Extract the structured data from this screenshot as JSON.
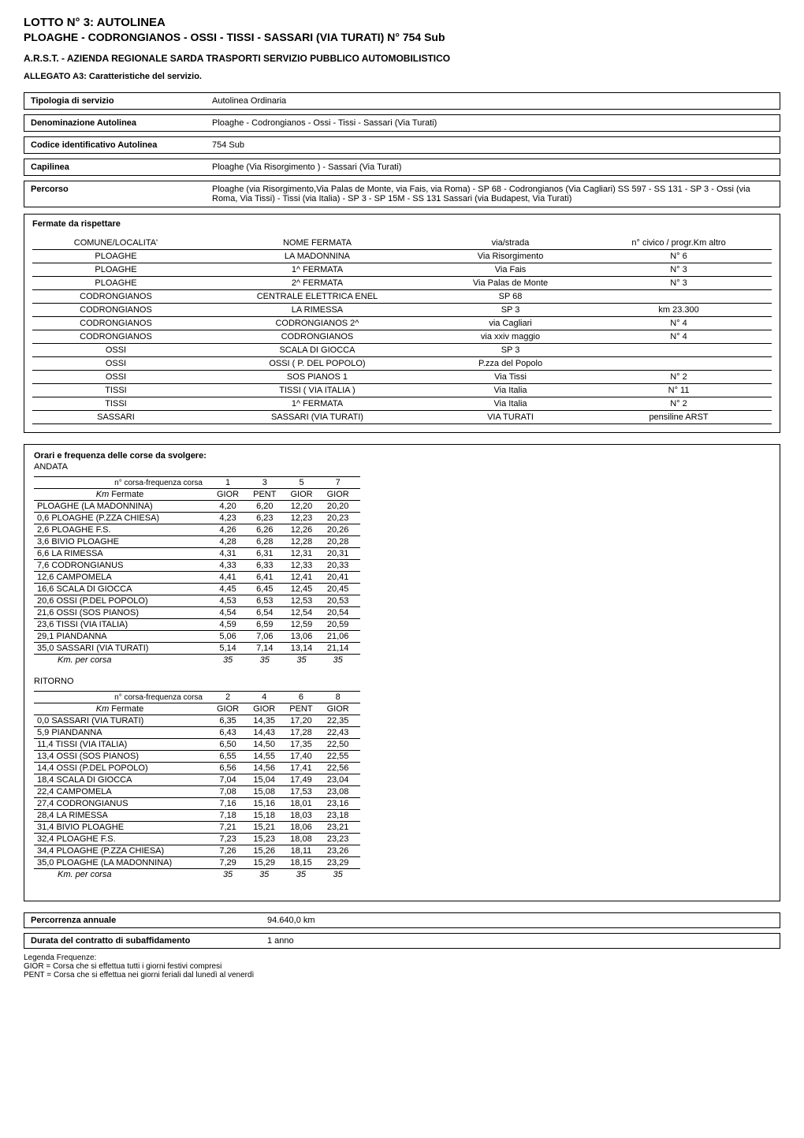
{
  "header": {
    "lotto": "LOTTO N° 3: AUTOLINEA",
    "line_name": "PLOAGHE - CODRONGIANOS - OSSI - TISSI - SASSARI (VIA TURATI) N° 754 Sub",
    "org": "A.R.S.T. -  AZIENDA REGIONALE SARDA TRASPORTI  SERVIZIO PUBBLICO AUTOMOBILISTICO",
    "allegato": "ALLEGATO A3: Caratteristiche del servizio."
  },
  "info": [
    {
      "label": "Tipologia di servizio",
      "value": "Autolinea Ordinaria"
    },
    {
      "label": "Denominazione Autolinea",
      "value": "Ploaghe - Codrongianos - Ossi - Tissi - Sassari (Via Turati)"
    },
    {
      "label": "Codice identificativo Autolinea",
      "value": "754 Sub"
    },
    {
      "label": "Capilinea",
      "value": "Ploaghe (Via  Risorgimento ) - Sassari (Via Turati)"
    },
    {
      "label": "Percorso",
      "value": "Ploaghe (via Risorgimento,Via Palas de Monte, via Fais, via Roma) - SP 68 - Codrongianos (Via Cagliari) SS 597 - SS 131 -  SP 3 - Ossi (via Roma, Via Tissi) - Tissi (via Italia) - SP 3 - SP 15M - SS 131 Sassari (via Budapest, Via Turati)"
    }
  ],
  "fermate": {
    "title": "Fermate da rispettare",
    "columns": [
      "COMUNE/LOCALITA'",
      "NOME FERMATA",
      "via/strada",
      "n° civico / progr.Km    altro"
    ],
    "rows": [
      [
        "PLOAGHE",
        "LA MADONNINA",
        "Via Risorgimento",
        "N° 6"
      ],
      [
        "PLOAGHE",
        "1^ FERMATA",
        "Via Fais",
        "N° 3"
      ],
      [
        "PLOAGHE",
        "2^ FERMATA",
        "Via Palas de Monte",
        "N° 3"
      ],
      [
        "CODRONGIANOS",
        "CENTRALE ELETTRICA ENEL",
        "SP 68",
        ""
      ],
      [
        "CODRONGIANOS",
        "LA RIMESSA",
        "SP 3",
        "km 23.300"
      ],
      [
        "CODRONGIANOS",
        "CODRONGIANOS 2^",
        "via Cagliari",
        "N° 4"
      ],
      [
        "CODRONGIANOS",
        "CODRONGIANOS",
        "via xxiv maggio",
        "N°  4"
      ],
      [
        "OSSI",
        "SCALA DI GIOCCA",
        "SP 3",
        ""
      ],
      [
        "OSSI",
        "OSSI ( P. DEL POPOLO)",
        "P.zza del Popolo",
        ""
      ],
      [
        "OSSI",
        "SOS PIANOS 1",
        "Via Tissi",
        "N° 2"
      ],
      [
        "TISSI",
        "TISSI ( VIA ITALIA )",
        "Via Italia",
        "N° 11"
      ],
      [
        "TISSI",
        "1^ FERMATA",
        "Via Italia",
        "N° 2"
      ],
      [
        "SASSARI",
        "SASSARI (VIA TURATI)",
        "VIA TURATI",
        "pensiline ARST"
      ]
    ]
  },
  "orari": {
    "title": "Orari e frequenza delle corse da svolgere:",
    "andata": {
      "label": "ANDATA",
      "corsa_label": "n° corsa-frequenza corsa",
      "km_label": "Km",
      "fermate_label": "Fermate",
      "corsa_nums": [
        "1",
        "3",
        "5",
        "7"
      ],
      "freq": [
        "GIOR",
        "PENT",
        "GIOR",
        "GIOR"
      ],
      "rows": [
        {
          "km": "",
          "name": "PLOAGHE (LA MADONNINA)",
          "t": [
            "4,20",
            "6,20",
            "12,20",
            "20,20"
          ]
        },
        {
          "km": "0,6",
          "name": "PLOAGHE (P.ZZA CHIESA)",
          "t": [
            "4,23",
            "6,23",
            "12,23",
            "20,23"
          ]
        },
        {
          "km": "2,6",
          "name": "PLOAGHE F.S.",
          "t": [
            "4,26",
            "6,26",
            "12,26",
            "20,26"
          ]
        },
        {
          "km": "3,6",
          "name": "BIVIO PLOAGHE",
          "t": [
            "4,28",
            "6,28",
            "12,28",
            "20,28"
          ]
        },
        {
          "km": "6,6",
          "name": "LA RIMESSA",
          "t": [
            "4,31",
            "6,31",
            "12,31",
            "20,31"
          ]
        },
        {
          "km": "7,6",
          "name": "CODRONGIANUS",
          "t": [
            "4,33",
            "6,33",
            "12,33",
            "20,33"
          ]
        },
        {
          "km": "12,6",
          "name": "CAMPOMELA",
          "t": [
            "4,41",
            "6,41",
            "12,41",
            "20,41"
          ]
        },
        {
          "km": "16,6",
          "name": "SCALA DI GIOCCA",
          "t": [
            "4,45",
            "6,45",
            "12,45",
            "20,45"
          ]
        },
        {
          "km": "20,6",
          "name": "OSSI (P.DEL POPOLO)",
          "t": [
            "4,53",
            "6,53",
            "12,53",
            "20,53"
          ]
        },
        {
          "km": "21,6",
          "name": "OSSI (SOS PIANOS)",
          "t": [
            "4,54",
            "6,54",
            "12,54",
            "20,54"
          ]
        },
        {
          "km": "23,6",
          "name": "TISSI (VIA ITALIA)",
          "t": [
            "4,59",
            "6,59",
            "12,59",
            "20,59"
          ]
        },
        {
          "km": "29,1",
          "name": "PIANDANNA",
          "t": [
            "5,06",
            "7,06",
            "13,06",
            "21,06"
          ]
        },
        {
          "km": "35,0",
          "name": "SASSARI (VIA TURATI)",
          "t": [
            "5,14",
            "7,14",
            "13,14",
            "21,14"
          ]
        }
      ],
      "footer_label": "Km. per corsa",
      "footer": [
        "35",
        "35",
        "35",
        "35"
      ]
    },
    "ritorno": {
      "label": "RITORNO",
      "corsa_label": "n° corsa-frequenza corsa",
      "km_label": "Km",
      "fermate_label": "Fermate",
      "corsa_nums": [
        "2",
        "4",
        "6",
        "8"
      ],
      "freq": [
        "GIOR",
        "GIOR",
        "PENT",
        "GIOR"
      ],
      "rows": [
        {
          "km": "0,0",
          "name": "SASSARI (VIA TURATI)",
          "t": [
            "6,35",
            "14,35",
            "17,20",
            "22,35"
          ]
        },
        {
          "km": "5,9",
          "name": "PIANDANNA",
          "t": [
            "6,43",
            "14,43",
            "17,28",
            "22,43"
          ]
        },
        {
          "km": "11,4",
          "name": "TISSI (VIA ITALIA)",
          "t": [
            "6,50",
            "14,50",
            "17,35",
            "22,50"
          ]
        },
        {
          "km": "13,4",
          "name": "OSSI (SOS PIANOS)",
          "t": [
            "6,55",
            "14,55",
            "17,40",
            "22,55"
          ]
        },
        {
          "km": "14,4",
          "name": "OSSI (P.DEL POPOLO)",
          "t": [
            "6,56",
            "14,56",
            "17,41",
            "22,56"
          ]
        },
        {
          "km": "18,4",
          "name": "SCALA DI GIOCCA",
          "t": [
            "7,04",
            "15,04",
            "17,49",
            "23,04"
          ]
        },
        {
          "km": "22,4",
          "name": "CAMPOMELA",
          "t": [
            "7,08",
            "15,08",
            "17,53",
            "23,08"
          ]
        },
        {
          "km": "27,4",
          "name": "CODRONGIANUS",
          "t": [
            "7,16",
            "15,16",
            "18,01",
            "23,16"
          ]
        },
        {
          "km": "28,4",
          "name": "LA RIMESSA",
          "t": [
            "7,18",
            "15,18",
            "18,03",
            "23,18"
          ]
        },
        {
          "km": "31,4",
          "name": "BIVIO PLOAGHE",
          "t": [
            "7,21",
            "15,21",
            "18,06",
            "23,21"
          ]
        },
        {
          "km": "32,4",
          "name": "PLOAGHE F.S.",
          "t": [
            "7,23",
            "15,23",
            "18,08",
            "23,23"
          ]
        },
        {
          "km": "34,4",
          "name": "PLOAGHE (P.ZZA CHIESA)",
          "t": [
            "7,26",
            "15,26",
            "18,11",
            "23,26"
          ]
        },
        {
          "km": "35,0",
          "name": "PLOAGHE (LA MADONNINA)",
          "t": [
            "7,29",
            "15,29",
            "18,15",
            "23,29"
          ]
        }
      ],
      "footer_label": "Km. per corsa",
      "footer": [
        "35",
        "35",
        "35",
        "35"
      ]
    }
  },
  "summary": [
    {
      "label": "Percorrenza annuale",
      "value": "94.640,0  km"
    },
    {
      "label": "Durata del contratto di subaffidamento",
      "value": "1 anno"
    }
  ],
  "legend": {
    "title": "Legenda Frequenze:",
    "lines": [
      "GIOR = Corsa che si effettua tutti i giorni festivi compresi",
      "PENT = Corsa che si effettua nei giorni feriali dal lunedì al venerdì"
    ]
  }
}
